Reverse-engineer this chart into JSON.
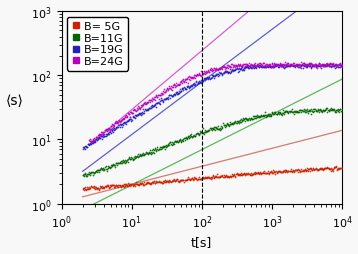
{
  "xlim": [
    1,
    10000
  ],
  "ylim": [
    1,
    1000
  ],
  "xlabel": "t[s]",
  "ylabel": "⟨s⟩",
  "vline_x": 100,
  "series": [
    {
      "label": "B= 5G",
      "scatter_color": "#cc2200",
      "line_color": "#cc6655",
      "t_scatter_start": 2.0,
      "t_scatter_end": 10000,
      "n_points": 500,
      "sat": 2.6,
      "tau": 300,
      "alpha": 0.28,
      "y0": 1.15,
      "fit_a": 1.05,
      "fit_exp": 0.28,
      "noise_sigma": 0.03
    },
    {
      "label": "B=11G",
      "scatter_color": "#006600",
      "line_color": "#44aa44",
      "t_scatter_start": 2.0,
      "t_scatter_end": 10000,
      "n_points": 500,
      "sat": 28,
      "tau": 300,
      "alpha": 0.55,
      "y0": 1.0,
      "fit_a": 0.55,
      "fit_exp": 0.55,
      "noise_sigma": 0.04
    },
    {
      "label": "B=19G",
      "scatter_color": "#2222bb",
      "line_color": "#4444cc",
      "t_scatter_start": 2.0,
      "t_scatter_end": 10000,
      "n_points": 500,
      "sat": 140,
      "tau": 120,
      "alpha": 0.75,
      "y0": 1.0,
      "fit_a": 1.8,
      "fit_exp": 0.82,
      "noise_sigma": 0.04
    },
    {
      "label": "B=24G",
      "scatter_color": "#bb00bb",
      "line_color": "#cc44cc",
      "t_scatter_start": 2.5,
      "t_scatter_end": 10000,
      "n_points": 500,
      "sat": 145,
      "tau": 70,
      "alpha": 0.85,
      "y0": 1.0,
      "fit_a": 3.5,
      "fit_exp": 0.92,
      "noise_sigma": 0.04
    }
  ],
  "legend_fontsize": 8,
  "tick_labelsize": 8,
  "marker_size": 1.5,
  "line_width": 0.9
}
